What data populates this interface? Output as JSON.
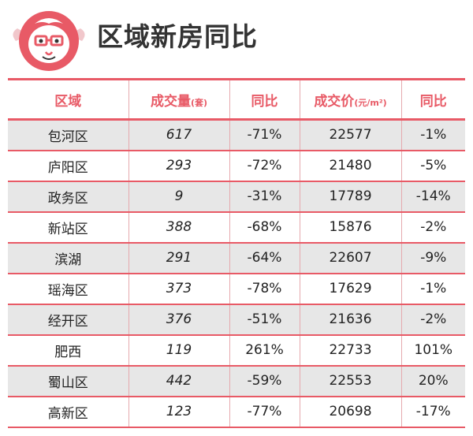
{
  "title": "区域新房同比",
  "logo_icon": "mascot-face-icon",
  "colors": {
    "accent": "#e85a66",
    "stripe": "#e7e7e7"
  },
  "table": {
    "headers": [
      {
        "text": "区域",
        "unit": ""
      },
      {
        "text": "成交量",
        "unit": "(套)"
      },
      {
        "text": "同比",
        "unit": ""
      },
      {
        "text": "成交价",
        "unit": "(元/m²)"
      },
      {
        "text": "同比",
        "unit": ""
      }
    ],
    "rows": [
      [
        "包河区",
        "617",
        "-71%",
        "22577",
        "-1%"
      ],
      [
        "庐阳区",
        "293",
        "-72%",
        "21480",
        "-5%"
      ],
      [
        "政务区",
        "9",
        "-31%",
        "17789",
        "-14%"
      ],
      [
        "新站区",
        "388",
        "-68%",
        "15876",
        "-2%"
      ],
      [
        "滨湖",
        "291",
        "-64%",
        "22607",
        "-9%"
      ],
      [
        "瑶海区",
        "373",
        "-78%",
        "17629",
        "-1%"
      ],
      [
        "经开区",
        "376",
        "-51%",
        "21636",
        "-2%"
      ],
      [
        "肥西",
        "119",
        "261%",
        "22733",
        "101%"
      ],
      [
        "蜀山区",
        "442",
        "-59%",
        "22553",
        "20%"
      ],
      [
        "高新区",
        "123",
        "-77%",
        "20698",
        "-17%"
      ]
    ]
  }
}
